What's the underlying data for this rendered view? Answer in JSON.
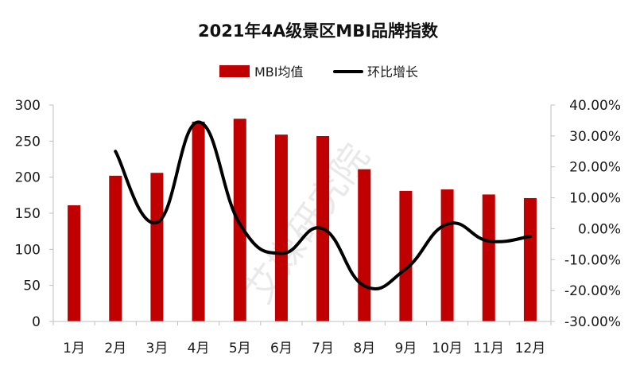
{
  "chart_data": {
    "type": "bar",
    "title": "2021年4A级景区MBI品牌指数",
    "categories": [
      "1月",
      "2月",
      "3月",
      "4月",
      "5月",
      "6月",
      "7月",
      "8月",
      "9月",
      "10月",
      "11月",
      "12月"
    ],
    "series": [
      {
        "name": "MBI均值",
        "kind": "bar",
        "axis": "left",
        "color": "#c00000",
        "values": [
          161,
          202,
          206,
          277,
          281,
          259,
          257,
          211,
          181,
          183,
          176,
          171
        ]
      },
      {
        "name": "环比增长",
        "kind": "line",
        "axis": "right",
        "color": "#000000",
        "smooth": true,
        "values": [
          null,
          25.0,
          2.0,
          34.5,
          1.5,
          -8.0,
          0.0,
          -18.5,
          -13.0,
          1.5,
          -4.0,
          -2.5
        ]
      }
    ],
    "y_left": {
      "min": 0,
      "max": 300,
      "ticks": [
        0,
        50,
        100,
        150,
        200,
        250,
        300
      ],
      "tick_labels": [
        "0",
        "50",
        "100",
        "150",
        "200",
        "250",
        "300"
      ]
    },
    "y_right": {
      "min": -30,
      "max": 40,
      "unit": "%",
      "ticks": [
        -30,
        -20,
        -10,
        0,
        10,
        20,
        30,
        40
      ],
      "tick_labels": [
        "-30.00%",
        "-20.00%",
        "-10.00%",
        "0.00%",
        "10.00%",
        "20.00%",
        "30.00%",
        "40.00%"
      ]
    },
    "legend_position": "top-center",
    "grid": false,
    "watermark": "艾媒研究院"
  }
}
